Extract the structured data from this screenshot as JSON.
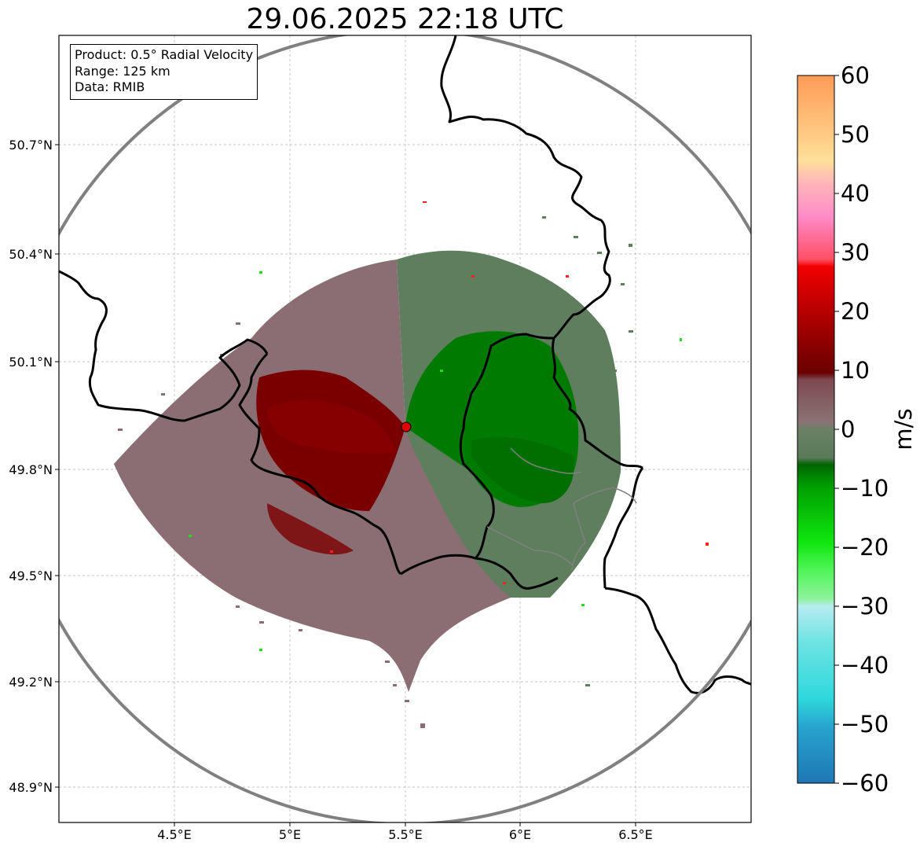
{
  "title": "29.06.2025 22:18 UTC",
  "info": {
    "product": "Product: 0.5° Radial Velocity",
    "range": "Range: 125 km",
    "data": "Data: RMIB"
  },
  "axes": {
    "lon_ticks": [
      "4.5°E",
      "5°E",
      "5.5°E",
      "6°E",
      "6.5°E"
    ],
    "lat_ticks": [
      "50.7°N",
      "50.4°N",
      "50.1°N",
      "49.8°N",
      "49.5°N",
      "49.2°N",
      "48.9°N"
    ]
  },
  "colorbar": {
    "label": "m/s",
    "ticks": [
      "60",
      "50",
      "40",
      "30",
      "20",
      "10",
      "0",
      "−10",
      "−20",
      "−30",
      "−40",
      "−50",
      "−60"
    ],
    "range": [
      -60,
      60
    ]
  },
  "colors": {
    "receding_dark": "#7a0000",
    "approaching": "#007a00",
    "near_zero_pos": "#8a6e73",
    "near_zero_neg": "#5e7e5e",
    "range_ring": "#808080",
    "radar_site": "#e00000"
  }
}
